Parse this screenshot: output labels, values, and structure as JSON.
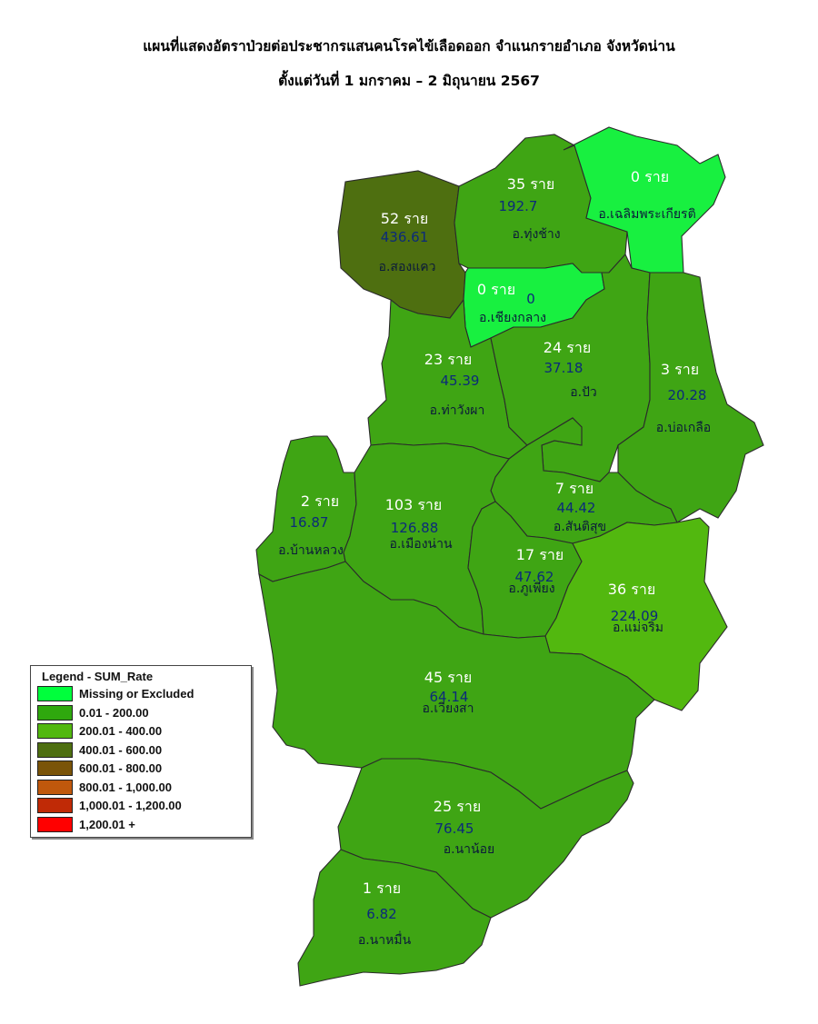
{
  "title": {
    "line1": "แผนที่แสดงอัตราป่วยต่อประชากรแสนคนโรคไข้เลือดออก จำแนกรายอำเภอ จังหวัดน่าน",
    "line2": "ตั้งแต่วันที่ 1 มกราคม – 2 มิถุนายน 2567"
  },
  "legend": {
    "title": "Legend - SUM_Rate",
    "items": [
      {
        "label": "Missing or Excluded",
        "color": "#00ff3c"
      },
      {
        "label": "0.01 - 200.00",
        "color": "#2fa80e"
      },
      {
        "label": "200.01 - 400.00",
        "color": "#52b80f"
      },
      {
        "label": "400.01 - 600.00",
        "color": "#4e6f10"
      },
      {
        "label": "600.01 - 800.00",
        "color": "#7a5408"
      },
      {
        "label": "800.01 - 1,000.00",
        "color": "#c0580c"
      },
      {
        "label": "1,000.01 - 1,200.00",
        "color": "#c02a06"
      },
      {
        "label": "1,200.01 +",
        "color": "#ff0000"
      }
    ]
  },
  "districts": [
    {
      "id": "songkhwae",
      "cases": "52 ราย",
      "rate": "436.61",
      "name": "อ.สองแคว",
      "color": "#4e6f10"
    },
    {
      "id": "thungchang",
      "cases": "35 ราย",
      "rate": "192.7",
      "name": "อ.ทุ่งช้าง",
      "color": "#3fa514"
    },
    {
      "id": "chaloemphrakiat",
      "cases": "0 ราย",
      "rate": "",
      "name": "อ.เฉลิมพระเกียรติ",
      "color": "#18f040"
    },
    {
      "id": "chiangklang",
      "cases": "0 ราย",
      "rate": "0",
      "name": "อ.เชียงกลาง",
      "color": "#18f040"
    },
    {
      "id": "thawangpha",
      "cases": "23 ราย",
      "rate": "45.39",
      "name": "อ.ท่าวังผา",
      "color": "#3fa514"
    },
    {
      "id": "pua",
      "cases": "24 ราย",
      "rate": "37.18",
      "name": "อ.ปัว",
      "color": "#3fa514"
    },
    {
      "id": "bokluea",
      "cases": "3 ราย",
      "rate": "20.28",
      "name": "อ.บ่อเกลือ",
      "color": "#3fa514"
    },
    {
      "id": "santisuk",
      "cases": "7 ราย",
      "rate": "44.42",
      "name": "อ.สันติสุข",
      "color": "#3fa514"
    },
    {
      "id": "banluang",
      "cases": "2 ราย",
      "rate": "16.87",
      "name": "อ.บ้านหลวง",
      "color": "#3fa514"
    },
    {
      "id": "mueangnan",
      "cases": "103 ราย",
      "rate": "126.88",
      "name": "อ.เมืองน่าน",
      "color": "#3fa514"
    },
    {
      "id": "phukhiang",
      "cases": "17 ราย",
      "rate": "47.62",
      "name": "อ.ภูเพียง",
      "color": "#3fa514"
    },
    {
      "id": "maecharim",
      "cases": "36 ราย",
      "rate": "224.09",
      "name": "อ.แม่จริม",
      "color": "#52b80f"
    },
    {
      "id": "wiangsa",
      "cases": "45 ราย",
      "rate": "64.14",
      "name": "อ.เวียงสา",
      "color": "#3fa514"
    },
    {
      "id": "nanoi",
      "cases": "25 ราย",
      "rate": "76.45",
      "name": "อ.นาน้อย",
      "color": "#3fa514"
    },
    {
      "id": "nameun",
      "cases": "1 ราย",
      "rate": "6.82",
      "name": "อ.นาหมื่น",
      "color": "#3fa514"
    }
  ]
}
